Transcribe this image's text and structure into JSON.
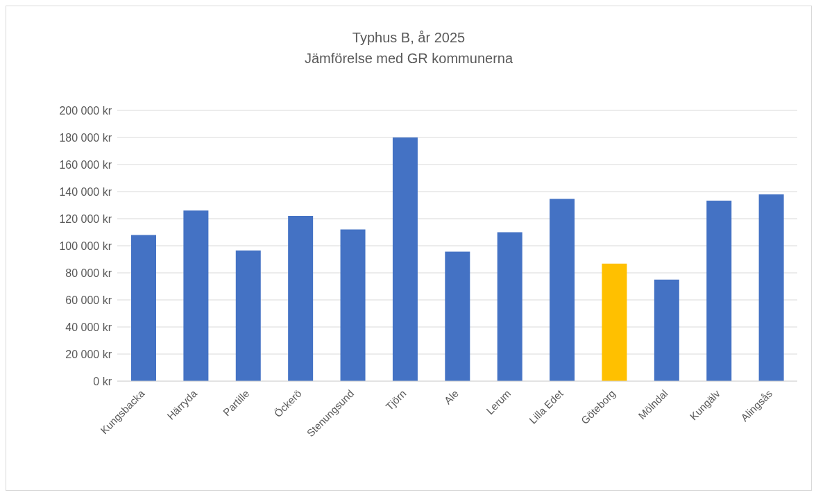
{
  "chart_data": {
    "type": "bar",
    "title": "Typhus B, år 2025",
    "subtitle": "Jämförelse med GR kommunerna",
    "categories": [
      "Kungsbacka",
      "Härryda",
      "Partille",
      "Öckerö",
      "Stenungsund",
      "Tjörn",
      "Ale",
      "Lerum",
      "Lilla Edet",
      "Göteborg",
      "Mölndal",
      "Kungälv",
      "Alingsås"
    ],
    "values": [
      108000,
      126000,
      96500,
      122000,
      112000,
      180000,
      95700,
      110000,
      134600,
      86800,
      75000,
      133300,
      137900
    ],
    "colors": [
      "#4472c4",
      "#4472c4",
      "#4472c4",
      "#4472c4",
      "#4472c4",
      "#4472c4",
      "#4472c4",
      "#4472c4",
      "#4472c4",
      "#ffc000",
      "#4472c4",
      "#4472c4",
      "#4472c4"
    ],
    "ylim": [
      0,
      200000
    ],
    "yticks": [
      {
        "value": 0,
        "label": "0 kr"
      },
      {
        "value": 20000,
        "label": "20 000 kr"
      },
      {
        "value": 40000,
        "label": "40 000 kr"
      },
      {
        "value": 60000,
        "label": "60 000 kr"
      },
      {
        "value": 80000,
        "label": "80 000 kr"
      },
      {
        "value": 100000,
        "label": "100 000 kr"
      },
      {
        "value": 120000,
        "label": "120 000 kr"
      },
      {
        "value": 140000,
        "label": "140 000 kr"
      },
      {
        "value": 160000,
        "label": "160 000 kr"
      },
      {
        "value": 180000,
        "label": "180 000 kr"
      },
      {
        "value": 200000,
        "label": "200 000 kr"
      }
    ],
    "grid": "y"
  }
}
